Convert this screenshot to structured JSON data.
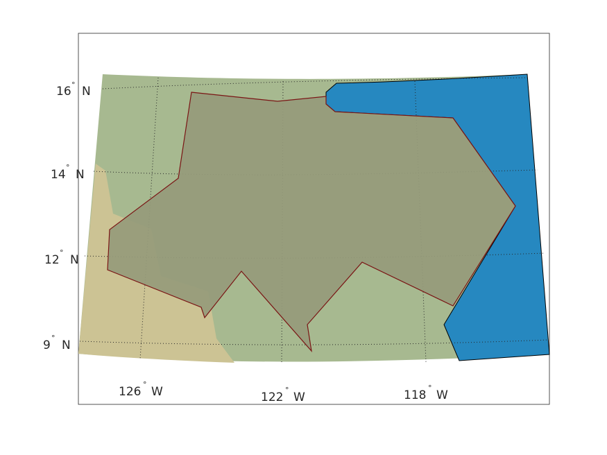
{
  "map": {
    "colors": {
      "land_green": "#a7b990",
      "land_tan": "#ccc394",
      "water": "#2688c0",
      "region_fill": "#969b7b",
      "region_outline": "#7a1414",
      "frame": "#262626",
      "graticule": "#262626"
    },
    "latitude_labels": [
      {
        "deg": "16",
        "hemi": "N"
      },
      {
        "deg": "14",
        "hemi": "N"
      },
      {
        "deg": "12",
        "hemi": "N"
      },
      {
        "deg": "9",
        "hemi": "N"
      }
    ],
    "longitude_labels": [
      {
        "deg": "126",
        "hemi": "W"
      },
      {
        "deg": "122",
        "hemi": "W"
      },
      {
        "deg": "118",
        "hemi": "W"
      }
    ],
    "degree_symbol": "°"
  }
}
